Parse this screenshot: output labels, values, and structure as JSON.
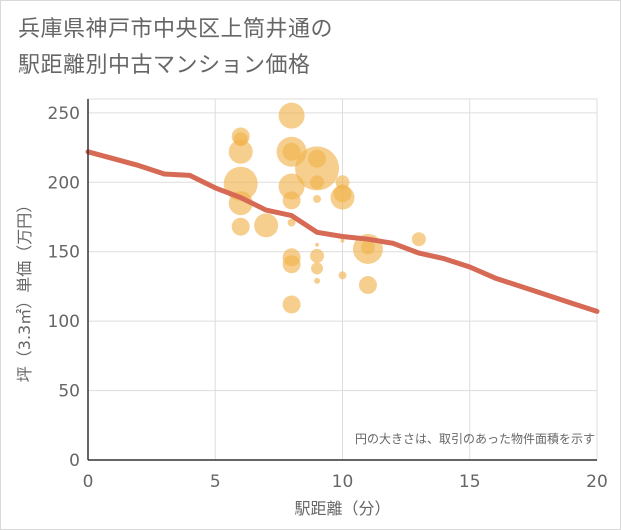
{
  "title": {
    "line1": "兵庫県神戸市中央区上筒井通の",
    "line2": "駅距離別中古マンション価格"
  },
  "note": "円の大きさは、取引のあった物件面積を示す",
  "colors": {
    "bubble": "#f0b14a",
    "line": "#d66a55",
    "grid": "#dddddd",
    "axis": "#333333",
    "text": "#666666"
  },
  "chart_data": {
    "type": "scatter",
    "xlabel": "駅距離（分）",
    "ylabel": "坪（3.3㎡）単価（万円）",
    "xlim": [
      0,
      20
    ],
    "ylim": [
      0,
      260
    ],
    "x_ticks": [
      0,
      5,
      10,
      15,
      20
    ],
    "y_ticks": [
      0,
      50,
      100,
      150,
      200,
      250
    ],
    "grid": true,
    "bubbles": [
      {
        "x": 6,
        "y": 233,
        "size": 9
      },
      {
        "x": 6,
        "y": 231,
        "size": 7
      },
      {
        "x": 6,
        "y": 222,
        "size": 12
      },
      {
        "x": 6,
        "y": 199,
        "size": 17
      },
      {
        "x": 6,
        "y": 185,
        "size": 12
      },
      {
        "x": 6,
        "y": 168,
        "size": 9
      },
      {
        "x": 7,
        "y": 169,
        "size": 12
      },
      {
        "x": 8,
        "y": 248,
        "size": 13
      },
      {
        "x": 8,
        "y": 222,
        "size": 15
      },
      {
        "x": 8,
        "y": 222,
        "size": 9
      },
      {
        "x": 8,
        "y": 197,
        "size": 13
      },
      {
        "x": 8,
        "y": 187,
        "size": 9
      },
      {
        "x": 8,
        "y": 171,
        "size": 4
      },
      {
        "x": 8,
        "y": 146,
        "size": 9
      },
      {
        "x": 8,
        "y": 141,
        "size": 9
      },
      {
        "x": 8,
        "y": 112,
        "size": 9
      },
      {
        "x": 9,
        "y": 217,
        "size": 9
      },
      {
        "x": 9,
        "y": 210,
        "size": 22
      },
      {
        "x": 9,
        "y": 200,
        "size": 7
      },
      {
        "x": 9,
        "y": 188,
        "size": 4
      },
      {
        "x": 9,
        "y": 155,
        "size": 2
      },
      {
        "x": 9,
        "y": 147,
        "size": 7
      },
      {
        "x": 9,
        "y": 138,
        "size": 6
      },
      {
        "x": 9,
        "y": 129,
        "size": 3
      },
      {
        "x": 10,
        "y": 200,
        "size": 7
      },
      {
        "x": 10,
        "y": 192,
        "size": 9
      },
      {
        "x": 10,
        "y": 189,
        "size": 12
      },
      {
        "x": 10,
        "y": 158,
        "size": 2
      },
      {
        "x": 10,
        "y": 133,
        "size": 4
      },
      {
        "x": 11,
        "y": 152,
        "size": 15
      },
      {
        "x": 11,
        "y": 153,
        "size": 7
      },
      {
        "x": 11,
        "y": 126,
        "size": 9
      },
      {
        "x": 13,
        "y": 159,
        "size": 7
      }
    ],
    "series": [
      {
        "x": [
          0,
          1,
          2,
          3,
          4,
          5,
          6,
          7,
          8,
          9,
          10,
          11,
          12,
          13,
          14,
          15,
          16,
          17,
          18,
          19,
          20
        ],
        "values": [
          222,
          217,
          212,
          206,
          205,
          196,
          189,
          180,
          176,
          164,
          161,
          159,
          156,
          149,
          145,
          139,
          131,
          125,
          119,
          113,
          107
        ]
      }
    ]
  }
}
